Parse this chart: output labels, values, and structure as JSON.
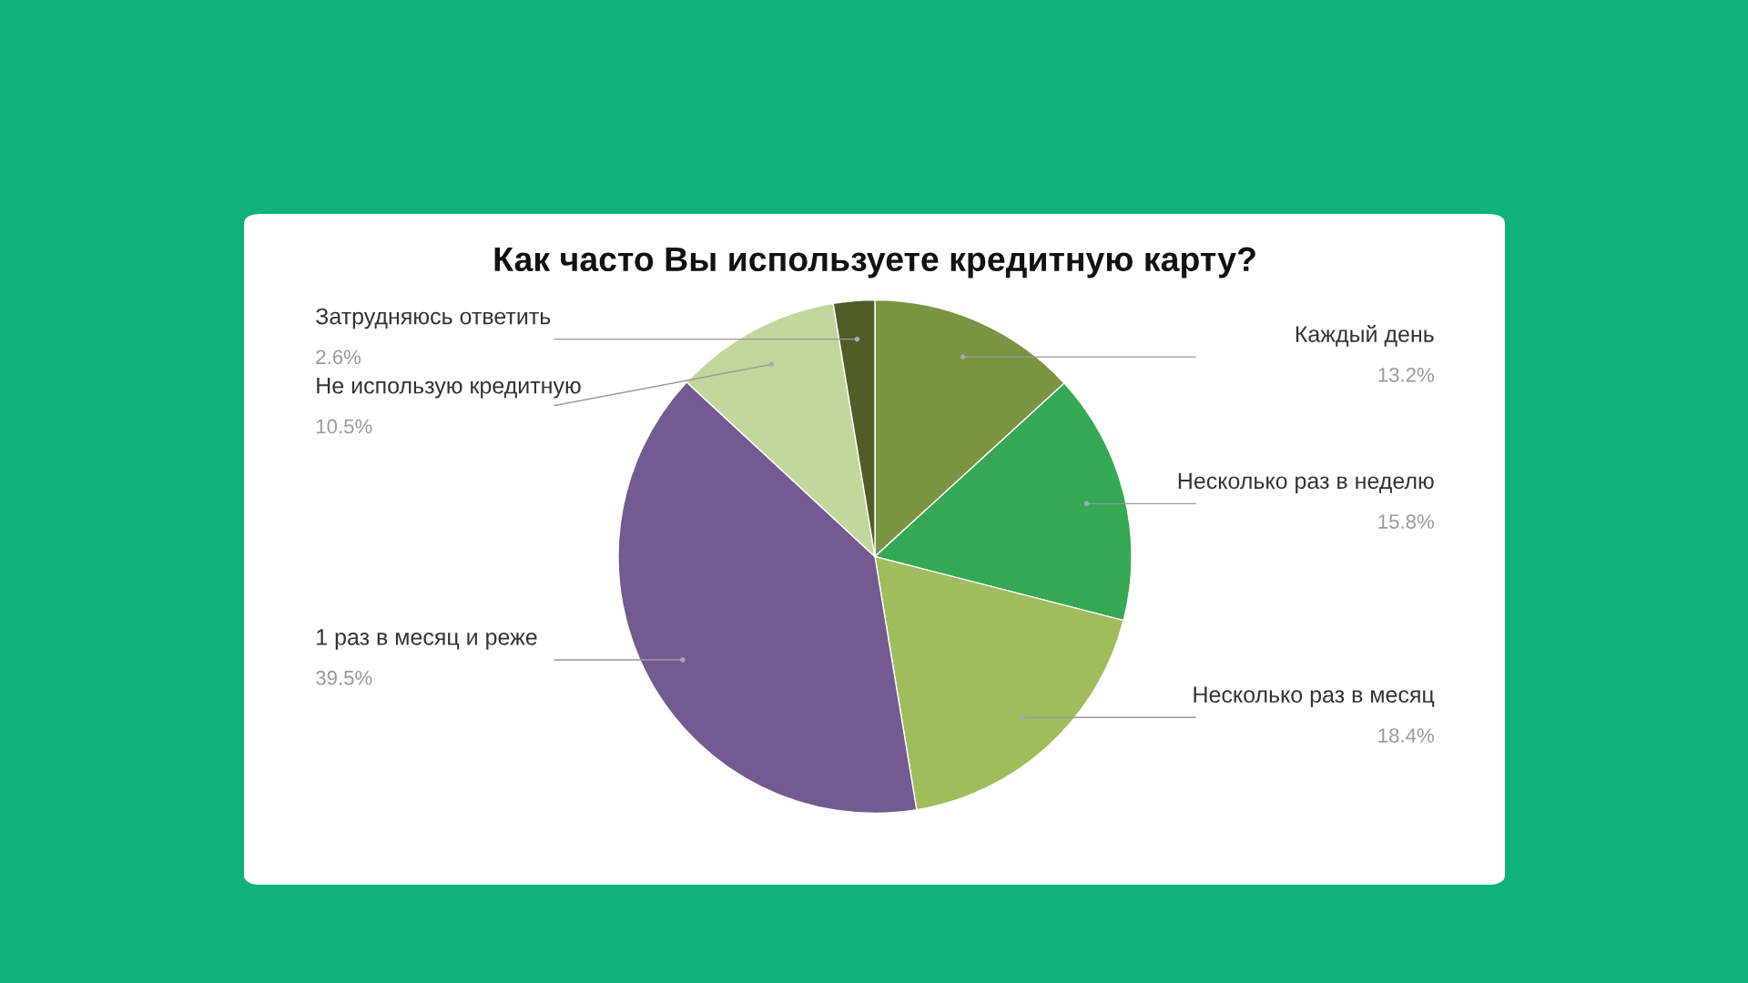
{
  "chart_data": {
    "type": "pie",
    "title": "Как часто Вы используете кредитную карту?",
    "categories": [
      "Каждый день",
      "Несколько раз в неделю",
      "Несколько раз в месяц",
      "1 раз в месяц и реже",
      "Не использую кредитную",
      "Затрудняюсь ответить"
    ],
    "values": [
      13.2,
      15.8,
      18.4,
      39.5,
      10.5,
      2.6
    ],
    "colors": [
      "#7a9441",
      "#35a853",
      "#9fbd5a",
      "#735a90",
      "#c3d69b",
      "#4e5e26"
    ],
    "value_labels": [
      "13.2%",
      "15.8%",
      "18.4%",
      "39.5%",
      "10.5%",
      "2.6%"
    ]
  }
}
